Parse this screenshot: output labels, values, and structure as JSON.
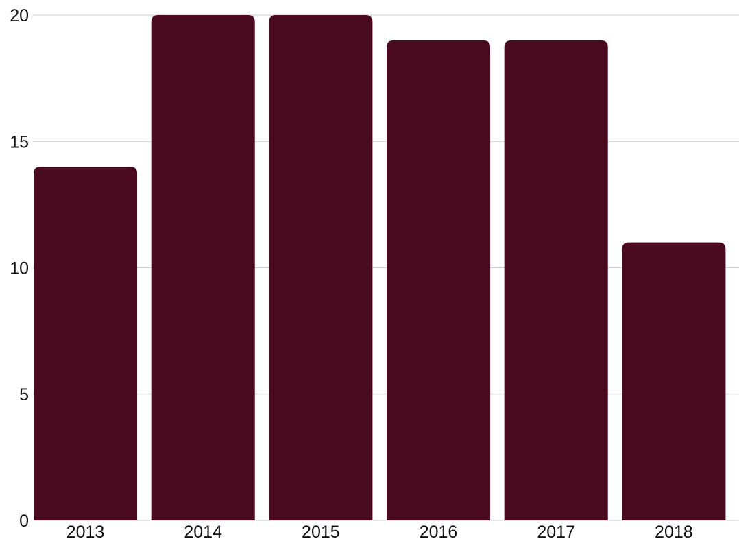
{
  "chart_data": {
    "type": "bar",
    "categories": [
      "2013",
      "2014",
      "2015",
      "2016",
      "2017",
      "2018"
    ],
    "values": [
      14,
      20,
      20,
      19,
      19,
      11
    ],
    "ylim": [
      0,
      20
    ],
    "yticks": [
      "0",
      "5",
      "10",
      "15",
      "20"
    ],
    "grid": true,
    "legend": "none",
    "colors": {
      "bar": "#4a0a20",
      "grid": "#cccccc",
      "text": "#111111"
    }
  }
}
